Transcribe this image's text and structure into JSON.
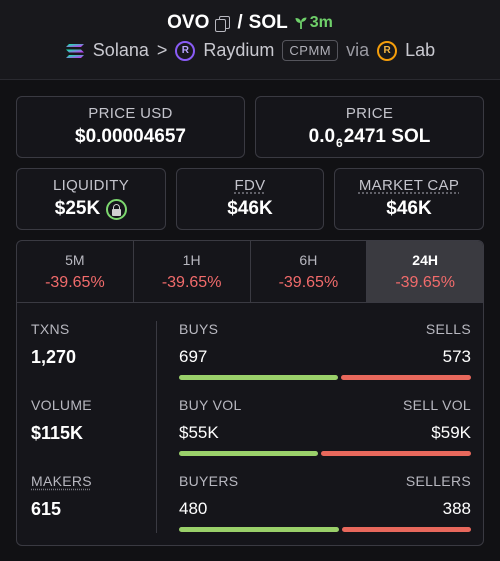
{
  "header": {
    "token": "OVO",
    "separator": "/",
    "quote": "SOL",
    "age": "3m",
    "chain": "Solana",
    "chevron": ">",
    "dex": "Raydium",
    "pool_type": "CPMM",
    "via": "via",
    "launchpad": "Lab"
  },
  "price_usd": {
    "label": "PRICE USD",
    "value": "$0.00004657"
  },
  "price": {
    "label": "PRICE",
    "prefix": "0.0",
    "subscript": "6",
    "digits": "2471",
    "unit": "SOL"
  },
  "liquidity": {
    "label": "LIQUIDITY",
    "value": "$25K"
  },
  "fdv": {
    "label": "FDV",
    "value": "$46K"
  },
  "market_cap": {
    "label": "MARKET CAP",
    "value": "$46K"
  },
  "tabs": [
    {
      "label": "5M",
      "change": "-39.65%"
    },
    {
      "label": "1H",
      "change": "-39.65%"
    },
    {
      "label": "6H",
      "change": "-39.65%"
    },
    {
      "label": "24H",
      "change": "-39.65%"
    }
  ],
  "stats": {
    "txns": {
      "label": "TXNS",
      "value": "1,270"
    },
    "volume": {
      "label": "VOLUME",
      "value": "$115K"
    },
    "makers": {
      "label": "MAKERS",
      "value": "615"
    }
  },
  "breakdown": {
    "buys": {
      "left_label": "BUYS",
      "right_label": "SELLS",
      "left_value": "697",
      "right_value": "573",
      "left_fraction": 0.549
    },
    "volume": {
      "left_label": "BUY VOL",
      "right_label": "SELL VOL",
      "left_value": "$55K",
      "right_value": "$59K",
      "left_fraction": 0.482
    },
    "makers": {
      "left_label": "BUYERS",
      "right_label": "SELLERS",
      "left_value": "480",
      "right_value": "388",
      "left_fraction": 0.553
    }
  },
  "colors": {
    "positive": "#9ad06a",
    "negative": "#e8685c",
    "change_text": "#f16b6b",
    "accent_green": "#6fd06a"
  }
}
